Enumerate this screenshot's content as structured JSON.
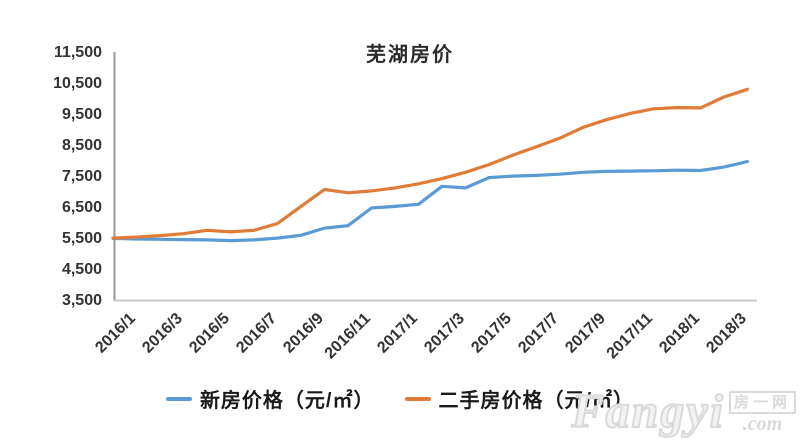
{
  "watermark": {
    "brand": "Fangyi",
    "cjk": "房一网",
    "domain": ".com"
  },
  "colors": {
    "new_house_line": "#5b9bd5",
    "secondhand_line": "#e07b38",
    "y_axis_line": "#9a9a9a",
    "x_axis_line": "#c8c8c8",
    "text": "#333333",
    "watermark": "#dadada"
  },
  "chart_data": {
    "type": "line",
    "title": "芜湖房价",
    "xlabel": "",
    "ylabel": "",
    "ylim": [
      3500,
      11500
    ],
    "ytick_step": 1000,
    "ytick_labels": [
      "3,500",
      "4,500",
      "5,500",
      "6,500",
      "7,500",
      "8,500",
      "9,500",
      "10,500",
      "11,500"
    ],
    "x": [
      "2016/1",
      "2016/2",
      "2016/3",
      "2016/4",
      "2016/5",
      "2016/6",
      "2016/7",
      "2016/8",
      "2016/9",
      "2016/10",
      "2016/11",
      "2016/12",
      "2017/1",
      "2017/2",
      "2017/3",
      "2017/4",
      "2017/5",
      "2017/6",
      "2017/7",
      "2017/8",
      "2017/9",
      "2017/10",
      "2017/11",
      "2017/12",
      "2018/1",
      "2018/2",
      "2018/3",
      "2018/4"
    ],
    "x_tick_labels": [
      "2016/1",
      "2016/3",
      "2016/5",
      "2016/7",
      "2016/9",
      "2016/11",
      "2017/1",
      "2017/3",
      "2017/5",
      "2017/7",
      "2017/9",
      "2017/11",
      "2018/1",
      "2018/3"
    ],
    "x_tick_every": 2,
    "grid": false,
    "legend_position": "bottom",
    "series": [
      {
        "name": "新房价格（元/㎡）",
        "color": "#5b9bd5",
        "values": [
          5520,
          5500,
          5490,
          5480,
          5470,
          5450,
          5470,
          5530,
          5620,
          5850,
          5930,
          6500,
          6550,
          6620,
          7200,
          7150,
          7480,
          7530,
          7550,
          7590,
          7650,
          7680,
          7690,
          7700,
          7720,
          7710,
          7820,
          8000
        ]
      },
      {
        "name": "二手房价格（元/㎡）",
        "color": "#e07b38",
        "values": [
          5530,
          5560,
          5610,
          5670,
          5780,
          5730,
          5780,
          6000,
          6550,
          7100,
          6990,
          7050,
          7150,
          7280,
          7450,
          7650,
          7900,
          8200,
          8470,
          8750,
          9100,
          9350,
          9550,
          9700,
          9740,
          9730,
          10080,
          10330
        ]
      }
    ]
  }
}
